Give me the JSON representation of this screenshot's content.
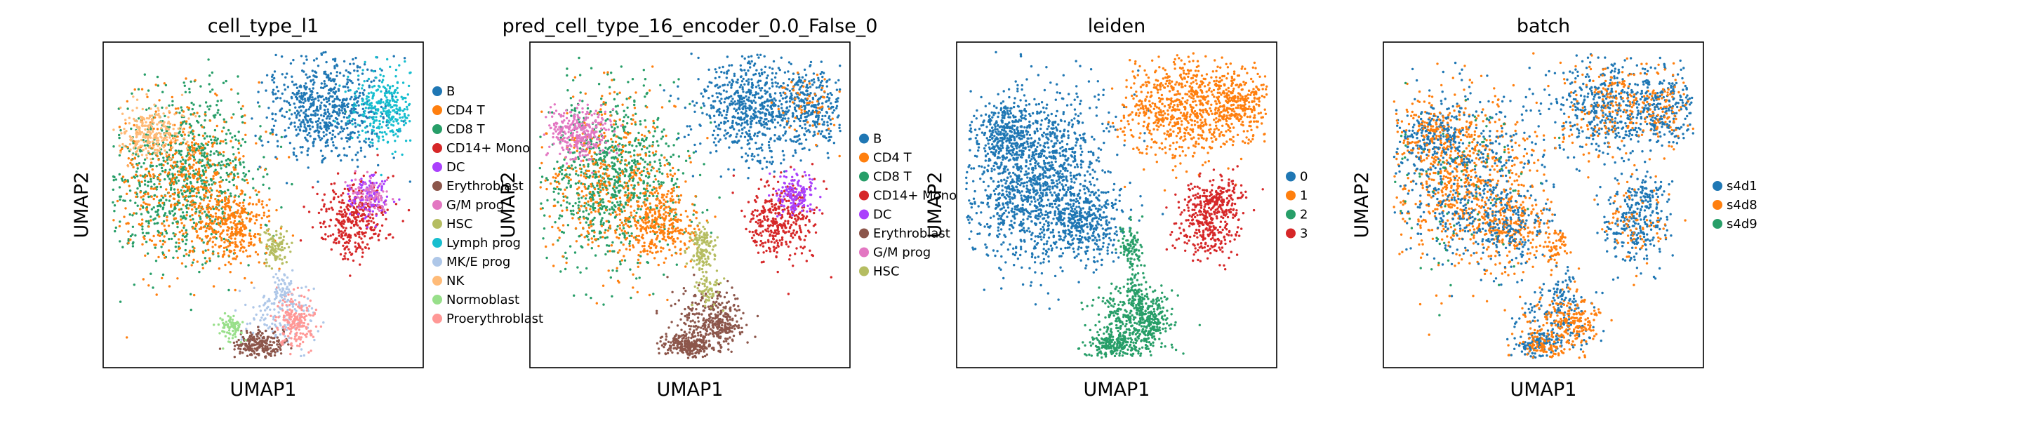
{
  "chart_data": [
    {
      "type": "scatter",
      "title": "cell_type_l1",
      "xlabel": "UMAP1",
      "ylabel": "UMAP2",
      "legend_position": "right",
      "grid": false,
      "series": [
        {
          "name": "B",
          "color": "#1f77b4"
        },
        {
          "name": "CD4 T",
          "color": "#ff7f0e"
        },
        {
          "name": "CD8 T",
          "color": "#279e68"
        },
        {
          "name": "CD14+ Mono",
          "color": "#d62728"
        },
        {
          "name": "DC",
          "color": "#aa40fc"
        },
        {
          "name": "Erythroblast",
          "color": "#8c564b"
        },
        {
          "name": "G/M prog",
          "color": "#e377c2"
        },
        {
          "name": "HSC",
          "color": "#b5bd61"
        },
        {
          "name": "Lymph prog",
          "color": "#17becf"
        },
        {
          "name": "MK/E prog",
          "color": "#aec7e8"
        },
        {
          "name": "NK",
          "color": "#ffbb78"
        },
        {
          "name": "Normoblast",
          "color": "#98df8a"
        },
        {
          "name": "Proerythroblast",
          "color": "#ff9896"
        }
      ]
    },
    {
      "type": "scatter",
      "title": "pred_cell_type_16_encoder_0.0_False_0",
      "xlabel": "UMAP1",
      "ylabel": "UMAP2",
      "legend_position": "right",
      "grid": false,
      "series": [
        {
          "name": "B",
          "color": "#1f77b4"
        },
        {
          "name": "CD4 T",
          "color": "#ff7f0e"
        },
        {
          "name": "CD8 T",
          "color": "#279e68"
        },
        {
          "name": "CD14+ Mono",
          "color": "#d62728"
        },
        {
          "name": "DC",
          "color": "#aa40fc"
        },
        {
          "name": "Erythroblast",
          "color": "#8c564b"
        },
        {
          "name": "G/M prog",
          "color": "#e377c2"
        },
        {
          "name": "HSC",
          "color": "#b5bd61"
        }
      ]
    },
    {
      "type": "scatter",
      "title": "leiden",
      "xlabel": "UMAP1",
      "ylabel": "UMAP2",
      "legend_position": "right",
      "grid": false,
      "series": [
        {
          "name": "0",
          "color": "#1f77b4"
        },
        {
          "name": "1",
          "color": "#ff7f0e"
        },
        {
          "name": "2",
          "color": "#279e68"
        },
        {
          "name": "3",
          "color": "#d62728"
        }
      ]
    },
    {
      "type": "scatter",
      "title": "batch",
      "xlabel": "UMAP1",
      "ylabel": "UMAP2",
      "legend_position": "right",
      "grid": false,
      "series": [
        {
          "name": "s4d1",
          "color": "#1f77b4"
        },
        {
          "name": "s4d8",
          "color": "#ff7f0e"
        },
        {
          "name": "s4d9",
          "color": "#279e68"
        }
      ]
    }
  ]
}
